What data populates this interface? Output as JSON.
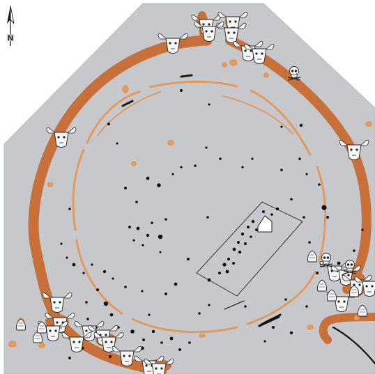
{
  "north_arrow": {
    "label": "N"
  },
  "site_plan": {
    "ground_color": "#c6c8cb",
    "ditch_color": "#c8703a",
    "pit_color": "#e29a5e",
    "posthole_color": "#111111"
  },
  "finds": {
    "cattle_skull_count": 24,
    "human_skull_count": 3,
    "animal_deposit_count": 8
  }
}
